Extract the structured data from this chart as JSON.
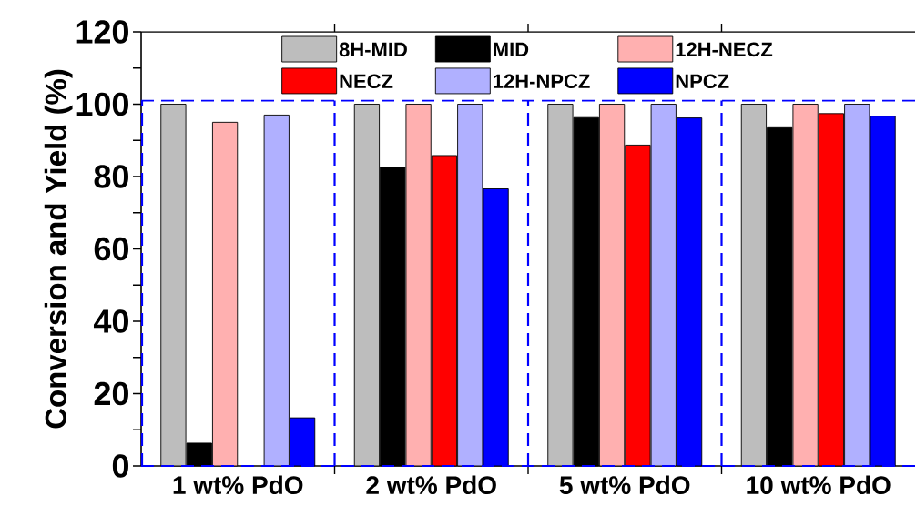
{
  "chart_data": {
    "type": "bar",
    "ylabel": "Conversion and Yield (%)",
    "categories": [
      "1 wt% PdO",
      "2 wt% PdO",
      "5 wt% PdO",
      "10 wt% PdO"
    ],
    "series": [
      {
        "name": "8H-MID",
        "color": "#bdbdbd",
        "values": [
          100,
          100,
          100,
          100
        ]
      },
      {
        "name": "MID",
        "color": "#000000",
        "values": [
          6.3,
          82.6,
          96.3,
          93.5
        ]
      },
      {
        "name": "12H-NECZ",
        "color": "#ffb0b0",
        "values": [
          95,
          100,
          100,
          100
        ]
      },
      {
        "name": "NECZ",
        "color": "#ff0000",
        "values": [
          null,
          85.8,
          88.7,
          97.4
        ]
      },
      {
        "name": "12H-NPCZ",
        "color": "#b0b0ff",
        "values": [
          97,
          100,
          100,
          100
        ]
      },
      {
        "name": "NPCZ",
        "color": "#0000ff",
        "values": [
          13.3,
          76.6,
          96.2,
          96.7
        ]
      }
    ],
    "ylim": [
      0,
      120
    ],
    "yticks": [
      0,
      20,
      40,
      60,
      80,
      100,
      120
    ],
    "ref_lines": [
      {
        "axis": "y",
        "value": 101,
        "color": "#0000ff",
        "line_style": "dashed"
      }
    ],
    "legend": "top",
    "grid": false
  }
}
